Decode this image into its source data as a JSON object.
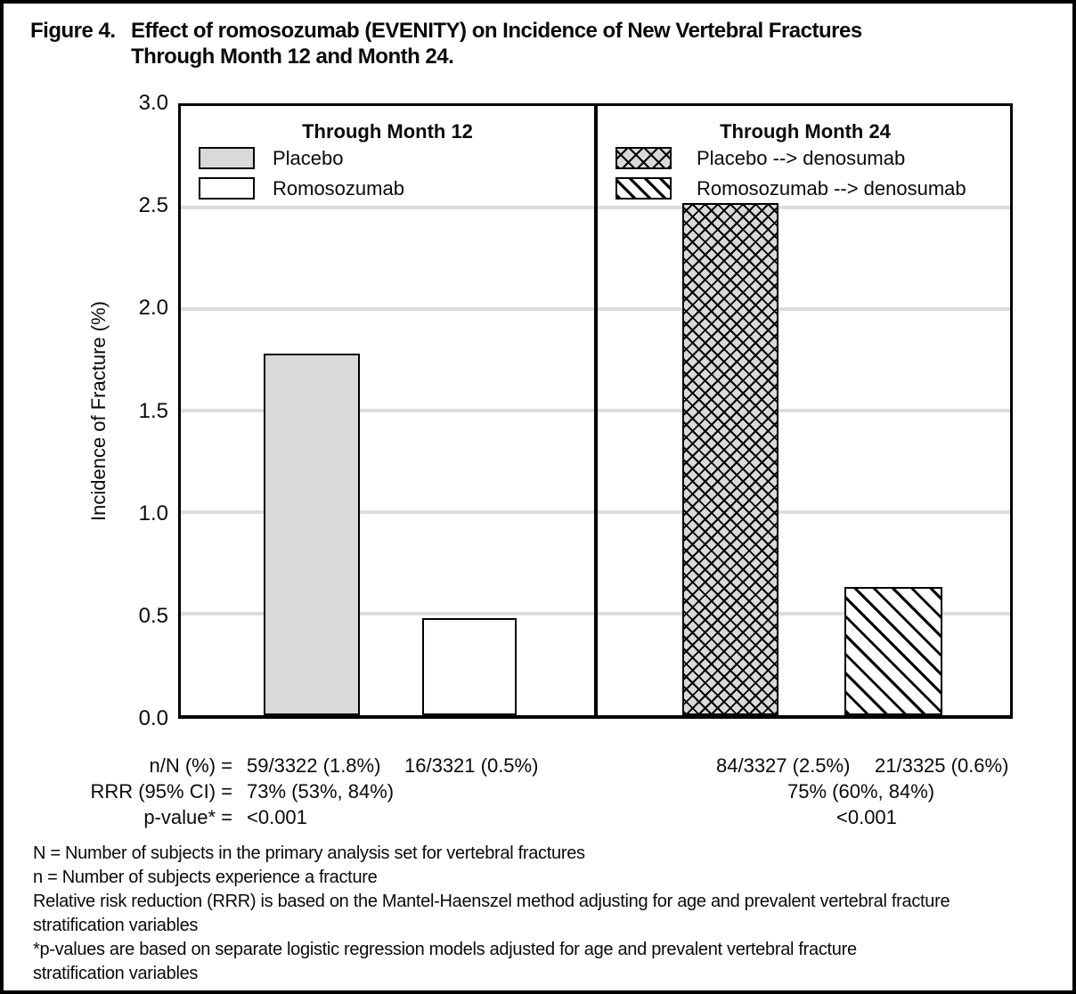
{
  "figure": {
    "title_prefix": "Figure 4.",
    "title_line1": "Effect of romosozumab (EVENITY) on Incidence of New Vertebral Fractures",
    "title_line2": "Through Month 12 and Month 24."
  },
  "axis": {
    "y_title": "Incidence of Fracture (%)",
    "ticks": [
      "3.0",
      "2.5",
      "2.0",
      "1.5",
      "1.0",
      "0.5",
      "0.0"
    ]
  },
  "panels": [
    {
      "title": "Through Month 12",
      "legend": [
        {
          "label": "Placebo",
          "pattern": "solid-gray"
        },
        {
          "label": "Romosozumab",
          "pattern": "white"
        }
      ]
    },
    {
      "title": "Through Month 24",
      "legend": [
        {
          "label": "Placebo --> denosumab",
          "pattern": "crosshatch"
        },
        {
          "label": "Romosozumab --> denosumab",
          "pattern": "diagonal"
        }
      ]
    }
  ],
  "chart_data": {
    "type": "bar",
    "ylabel": "Incidence of Fracture (%)",
    "ylim": [
      0,
      3.0
    ],
    "grid": true,
    "gridline_step": 0.5,
    "panels": [
      {
        "title": "Through Month 12",
        "series": [
          {
            "name": "Placebo",
            "value": 1.78,
            "pattern": "solid-gray"
          },
          {
            "name": "Romosozumab",
            "value": 0.48,
            "pattern": "white"
          }
        ]
      },
      {
        "title": "Through Month 24",
        "series": [
          {
            "name": "Placebo --> denosumab",
            "value": 2.52,
            "pattern": "crosshatch"
          },
          {
            "name": "Romosozumab --> denosumab",
            "value": 0.63,
            "pattern": "diagonal"
          }
        ]
      }
    ]
  },
  "stats": {
    "rows": [
      {
        "label": "n/N (%) =",
        "left_value_1": "59/3322 (1.8%)",
        "left_value_2": "16/3321 (0.5%)",
        "right_value_1": "84/3327 (2.5%)",
        "right_value_2": "21/3325 (0.6%)"
      },
      {
        "label": "RRR (95% CI) =",
        "left_value_1": "73% (53%, 84%)",
        "right_value_1": "75% (60%, 84%)"
      },
      {
        "label": "p-value* =",
        "left_value_1": "<0.001",
        "right_value_1": "<0.001"
      }
    ]
  },
  "footnotes": [
    "N = Number of subjects in the primary analysis set for vertebral fractures",
    "n = Number of subjects experience a fracture",
    "Relative risk reduction (RRR) is based on the Mantel-Haenszel method adjusting for age and prevalent vertebral fracture",
    "stratification variables",
    "*p-values are based on separate logistic regression models adjusted for age and prevalent vertebral fracture",
    "stratification variables"
  ],
  "colors": {
    "bar_gray": "#d9d9d9",
    "gridline": "#dcdcdc",
    "line": "#000000"
  }
}
